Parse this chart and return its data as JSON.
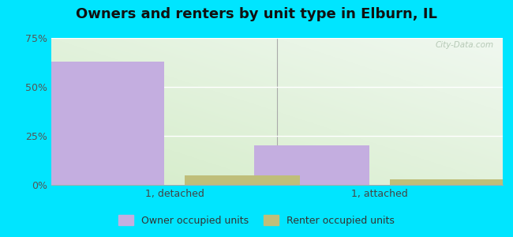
{
  "title": "Owners and renters by unit type in Elburn, IL",
  "groups": [
    "1, detached",
    "1, attached"
  ],
  "owner_values": [
    63,
    20
  ],
  "renter_values": [
    5,
    3
  ],
  "owner_color": "#c4aee0",
  "renter_color": "#bfbe7a",
  "owner_label": "Owner occupied units",
  "renter_label": "Renter occupied units",
  "ylim": [
    0,
    75
  ],
  "yticks": [
    0,
    25,
    50,
    75
  ],
  "ytick_labels": [
    "0%",
    "25%",
    "50%",
    "75%"
  ],
  "bg_color": "#00e5ff",
  "watermark": "City-Data.com",
  "bar_width": 0.28,
  "bar_gap": 0.05,
  "group_positions": [
    0.25,
    0.75
  ],
  "title_fontsize": 13,
  "grid_color": "#e0e8d8",
  "gradient_left": "#d4ecc8",
  "gradient_right": "#f0f8f0"
}
